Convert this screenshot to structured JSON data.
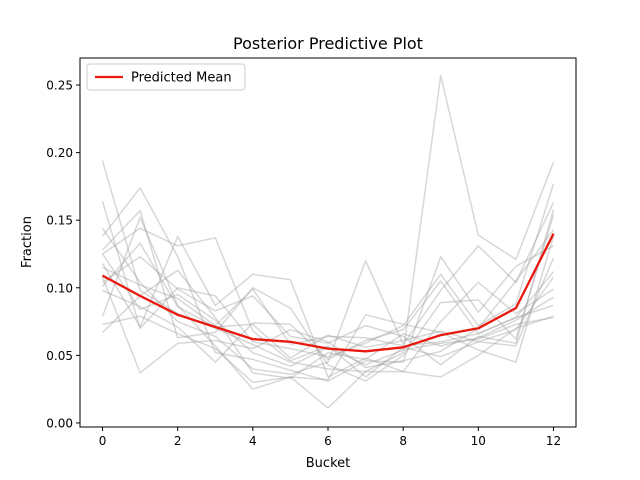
{
  "chart_data": {
    "type": "line",
    "title": "Posterior Predictive Plot",
    "xlabel": "Bucket",
    "ylabel": "Fraction",
    "xlim": [
      -0.6,
      12.6
    ],
    "ylim": [
      -0.003,
      0.27
    ],
    "xticks": [
      0,
      2,
      4,
      6,
      8,
      10,
      12
    ],
    "yticks": [
      0.0,
      0.05,
      0.1,
      0.15,
      0.2,
      0.25
    ],
    "ytick_labels": [
      "0.00",
      "0.05",
      "0.10",
      "0.15",
      "0.20",
      "0.25"
    ],
    "legend": {
      "position": "top-left",
      "entries": [
        "Predicted Mean"
      ]
    },
    "grid": false,
    "mean_series": {
      "name": "Predicted Mean",
      "color": "#e8190e",
      "x": [
        0,
        1,
        2,
        3,
        4,
        5,
        6,
        7,
        8,
        9,
        10,
        11,
        12
      ],
      "values": [
        0.109,
        0.094,
        0.08,
        0.071,
        0.062,
        0.06,
        0.055,
        0.053,
        0.056,
        0.065,
        0.07,
        0.085,
        0.14
      ]
    },
    "sample_color": "#a0a0a0",
    "samples": [
      [
        0.194,
        0.098,
        0.081,
        0.07,
        0.058,
        0.045,
        0.04,
        0.038,
        0.052,
        0.257,
        0.139,
        0.121,
        0.193
      ],
      [
        0.164,
        0.07,
        0.1,
        0.094,
        0.06,
        0.055,
        0.049,
        0.059,
        0.072,
        0.11,
        0.072,
        0.088,
        0.177
      ],
      [
        0.144,
        0.104,
        0.075,
        0.064,
        0.04,
        0.036,
        0.045,
        0.12,
        0.058,
        0.098,
        0.131,
        0.104,
        0.163
      ],
      [
        0.138,
        0.174,
        0.123,
        0.052,
        0.047,
        0.039,
        0.031,
        0.046,
        0.045,
        0.123,
        0.082,
        0.116,
        0.131
      ],
      [
        0.128,
        0.157,
        0.063,
        0.067,
        0.1,
        0.085,
        0.043,
        0.031,
        0.05,
        0.089,
        0.091,
        0.062,
        0.154
      ],
      [
        0.125,
        0.144,
        0.131,
        0.137,
        0.068,
        0.046,
        0.057,
        0.034,
        0.056,
        0.049,
        0.06,
        0.069,
        0.108
      ],
      [
        0.118,
        0.071,
        0.138,
        0.087,
        0.11,
        0.106,
        0.034,
        0.048,
        0.038,
        0.075,
        0.104,
        0.081,
        0.099
      ],
      [
        0.115,
        0.102,
        0.092,
        0.072,
        0.099,
        0.058,
        0.064,
        0.063,
        0.057,
        0.06,
        0.066,
        0.078,
        0.087
      ],
      [
        0.108,
        0.037,
        0.059,
        0.061,
        0.055,
        0.069,
        0.06,
        0.041,
        0.046,
        0.053,
        0.07,
        0.105,
        0.143
      ],
      [
        0.104,
        0.123,
        0.099,
        0.083,
        0.094,
        0.064,
        0.059,
        0.072,
        0.064,
        0.043,
        0.064,
        0.059,
        0.158
      ],
      [
        0.101,
        0.133,
        0.086,
        0.071,
        0.073,
        0.048,
        0.065,
        0.056,
        0.061,
        0.068,
        0.06,
        0.057,
        0.122
      ],
      [
        0.098,
        0.086,
        0.071,
        0.045,
        0.074,
        0.073,
        0.047,
        0.061,
        0.069,
        0.105,
        0.066,
        0.078,
        0.112
      ],
      [
        0.079,
        0.152,
        0.087,
        0.057,
        0.025,
        0.034,
        0.032,
        0.08,
        0.073,
        0.067,
        0.054,
        0.045,
        0.138
      ],
      [
        0.073,
        0.079,
        0.066,
        0.055,
        0.03,
        0.034,
        0.011,
        0.038,
        0.038,
        0.034,
        0.05,
        0.07,
        0.079
      ],
      [
        0.067,
        0.094,
        0.113,
        0.078,
        0.037,
        0.033,
        0.052,
        0.047,
        0.066,
        0.057,
        0.063,
        0.076,
        0.093
      ],
      [
        0.125,
        0.084,
        0.095,
        0.076,
        0.052,
        0.042,
        0.056,
        0.043,
        0.054,
        0.059,
        0.062,
        0.073,
        0.078
      ]
    ]
  }
}
